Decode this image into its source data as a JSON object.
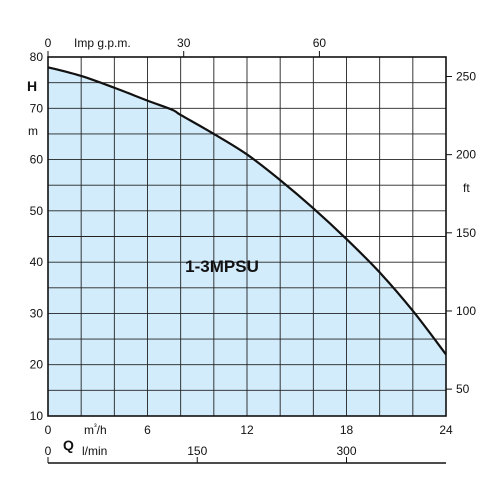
{
  "chart_data": {
    "type": "area",
    "series": [
      {
        "name": "1-3MPSU",
        "x": [
          0,
          2,
          4,
          6,
          7.5,
          8,
          10,
          12,
          14,
          16,
          18,
          20,
          22,
          24
        ],
        "y": [
          78,
          76.3,
          74.0,
          71.5,
          69.7,
          68.7,
          65.0,
          61.0,
          56.0,
          50.5,
          44.5,
          38.0,
          30.5,
          22.0
        ]
      }
    ],
    "x_axis": {
      "label": "m³/h",
      "ticks": [
        "0",
        "6",
        "12",
        "18",
        "24"
      ],
      "tick_values": [
        0,
        6,
        12,
        18,
        24
      ],
      "range": [
        0,
        24
      ]
    },
    "y_axis_left": {
      "label_symbol": "H",
      "label_unit": "m",
      "ticks": [
        "10",
        "20",
        "30",
        "40",
        "50",
        "60",
        "70",
        "80"
      ],
      "tick_values": [
        10,
        20,
        30,
        40,
        50,
        60,
        70,
        80
      ],
      "range": [
        10,
        80
      ]
    },
    "y_axis_right": {
      "label_unit": "ft",
      "ticks": [
        "50",
        "100",
        "150",
        "200",
        "250"
      ],
      "tick_values": [
        50,
        100,
        150,
        200,
        250
      ]
    },
    "top_axis": {
      "label": "Imp g.p.m.",
      "ticks": [
        "0",
        "30",
        "60"
      ],
      "tick_values": [
        0,
        30,
        60
      ]
    },
    "bottom_axis": {
      "symbol": "Q",
      "label": "l/min",
      "ticks": [
        "0",
        "150",
        "300"
      ],
      "tick_values": [
        0,
        150,
        300
      ]
    },
    "grid": true,
    "colors": {
      "fill": "#d3ecfb",
      "curve": "#111111",
      "grid": "#222222"
    }
  }
}
